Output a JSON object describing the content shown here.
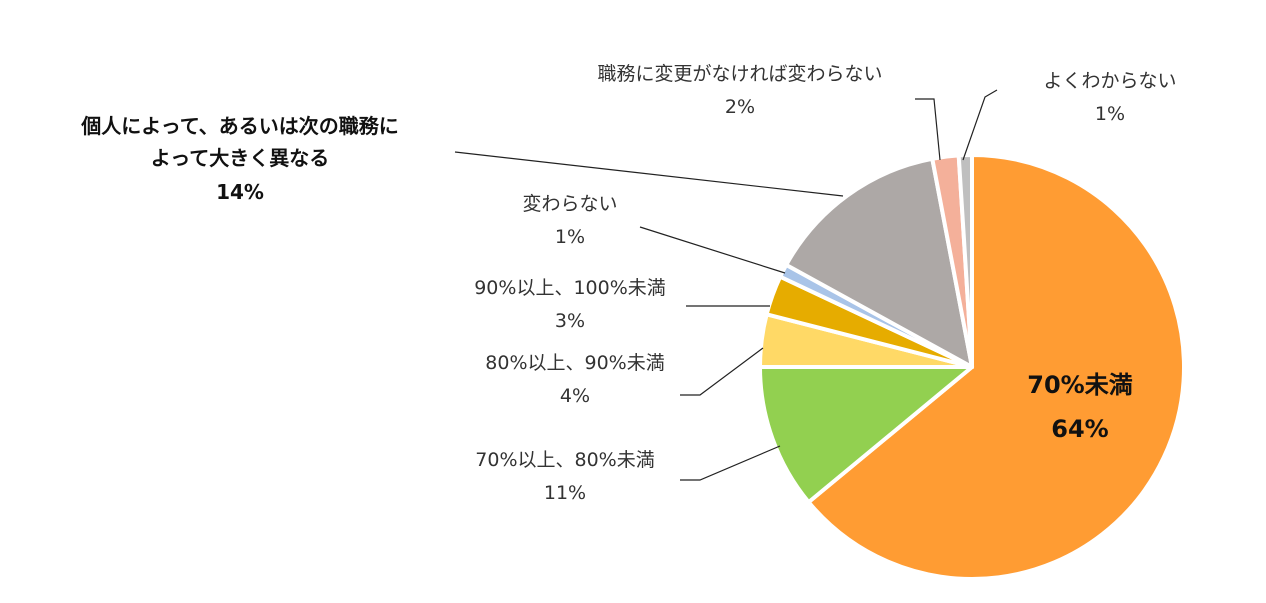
{
  "chart_data": {
    "type": "pie",
    "title": "",
    "start": "top",
    "direction": "clockwise",
    "slices": [
      {
        "id": "lt70",
        "label": "70%未満",
        "value": 64,
        "value_label": "64%",
        "color": "#FF9C33"
      },
      {
        "id": "70to80",
        "label": "70%以上、80%未満",
        "value": 11,
        "value_label": "11%",
        "color": "#92D050"
      },
      {
        "id": "80to90",
        "label": "80%以上、90%未満",
        "value": 4,
        "value_label": "4%",
        "color": "#FFD966"
      },
      {
        "id": "90to100",
        "label": "90%以上、100%未満",
        "value": 3,
        "value_label": "3%",
        "color": "#E6AC00"
      },
      {
        "id": "unchanged",
        "label": "変わらない",
        "value": 1,
        "value_label": "1%",
        "color": "#A9C4E8"
      },
      {
        "id": "depends",
        "label": "個人によって、あるいは次の職務によって大きく異なる",
        "value": 14,
        "value_label": "14%",
        "color": "#ADA8A6"
      },
      {
        "id": "nochange",
        "label": "職務に変更がなければ変わらない",
        "value": 2,
        "value_label": "2%",
        "color": "#F4B09A"
      },
      {
        "id": "unknown",
        "label": "よくわからない",
        "value": 1,
        "value_label": "1%",
        "color": "#BFBFBF"
      }
    ]
  },
  "labels": {
    "depends_line1": "個人によって、あるいは次の職務に",
    "depends_line2": "よって大きく異なる"
  },
  "colors": {
    "leader": "#222222",
    "separator": "#ffffff",
    "extra_sliver": "#92D050"
  }
}
